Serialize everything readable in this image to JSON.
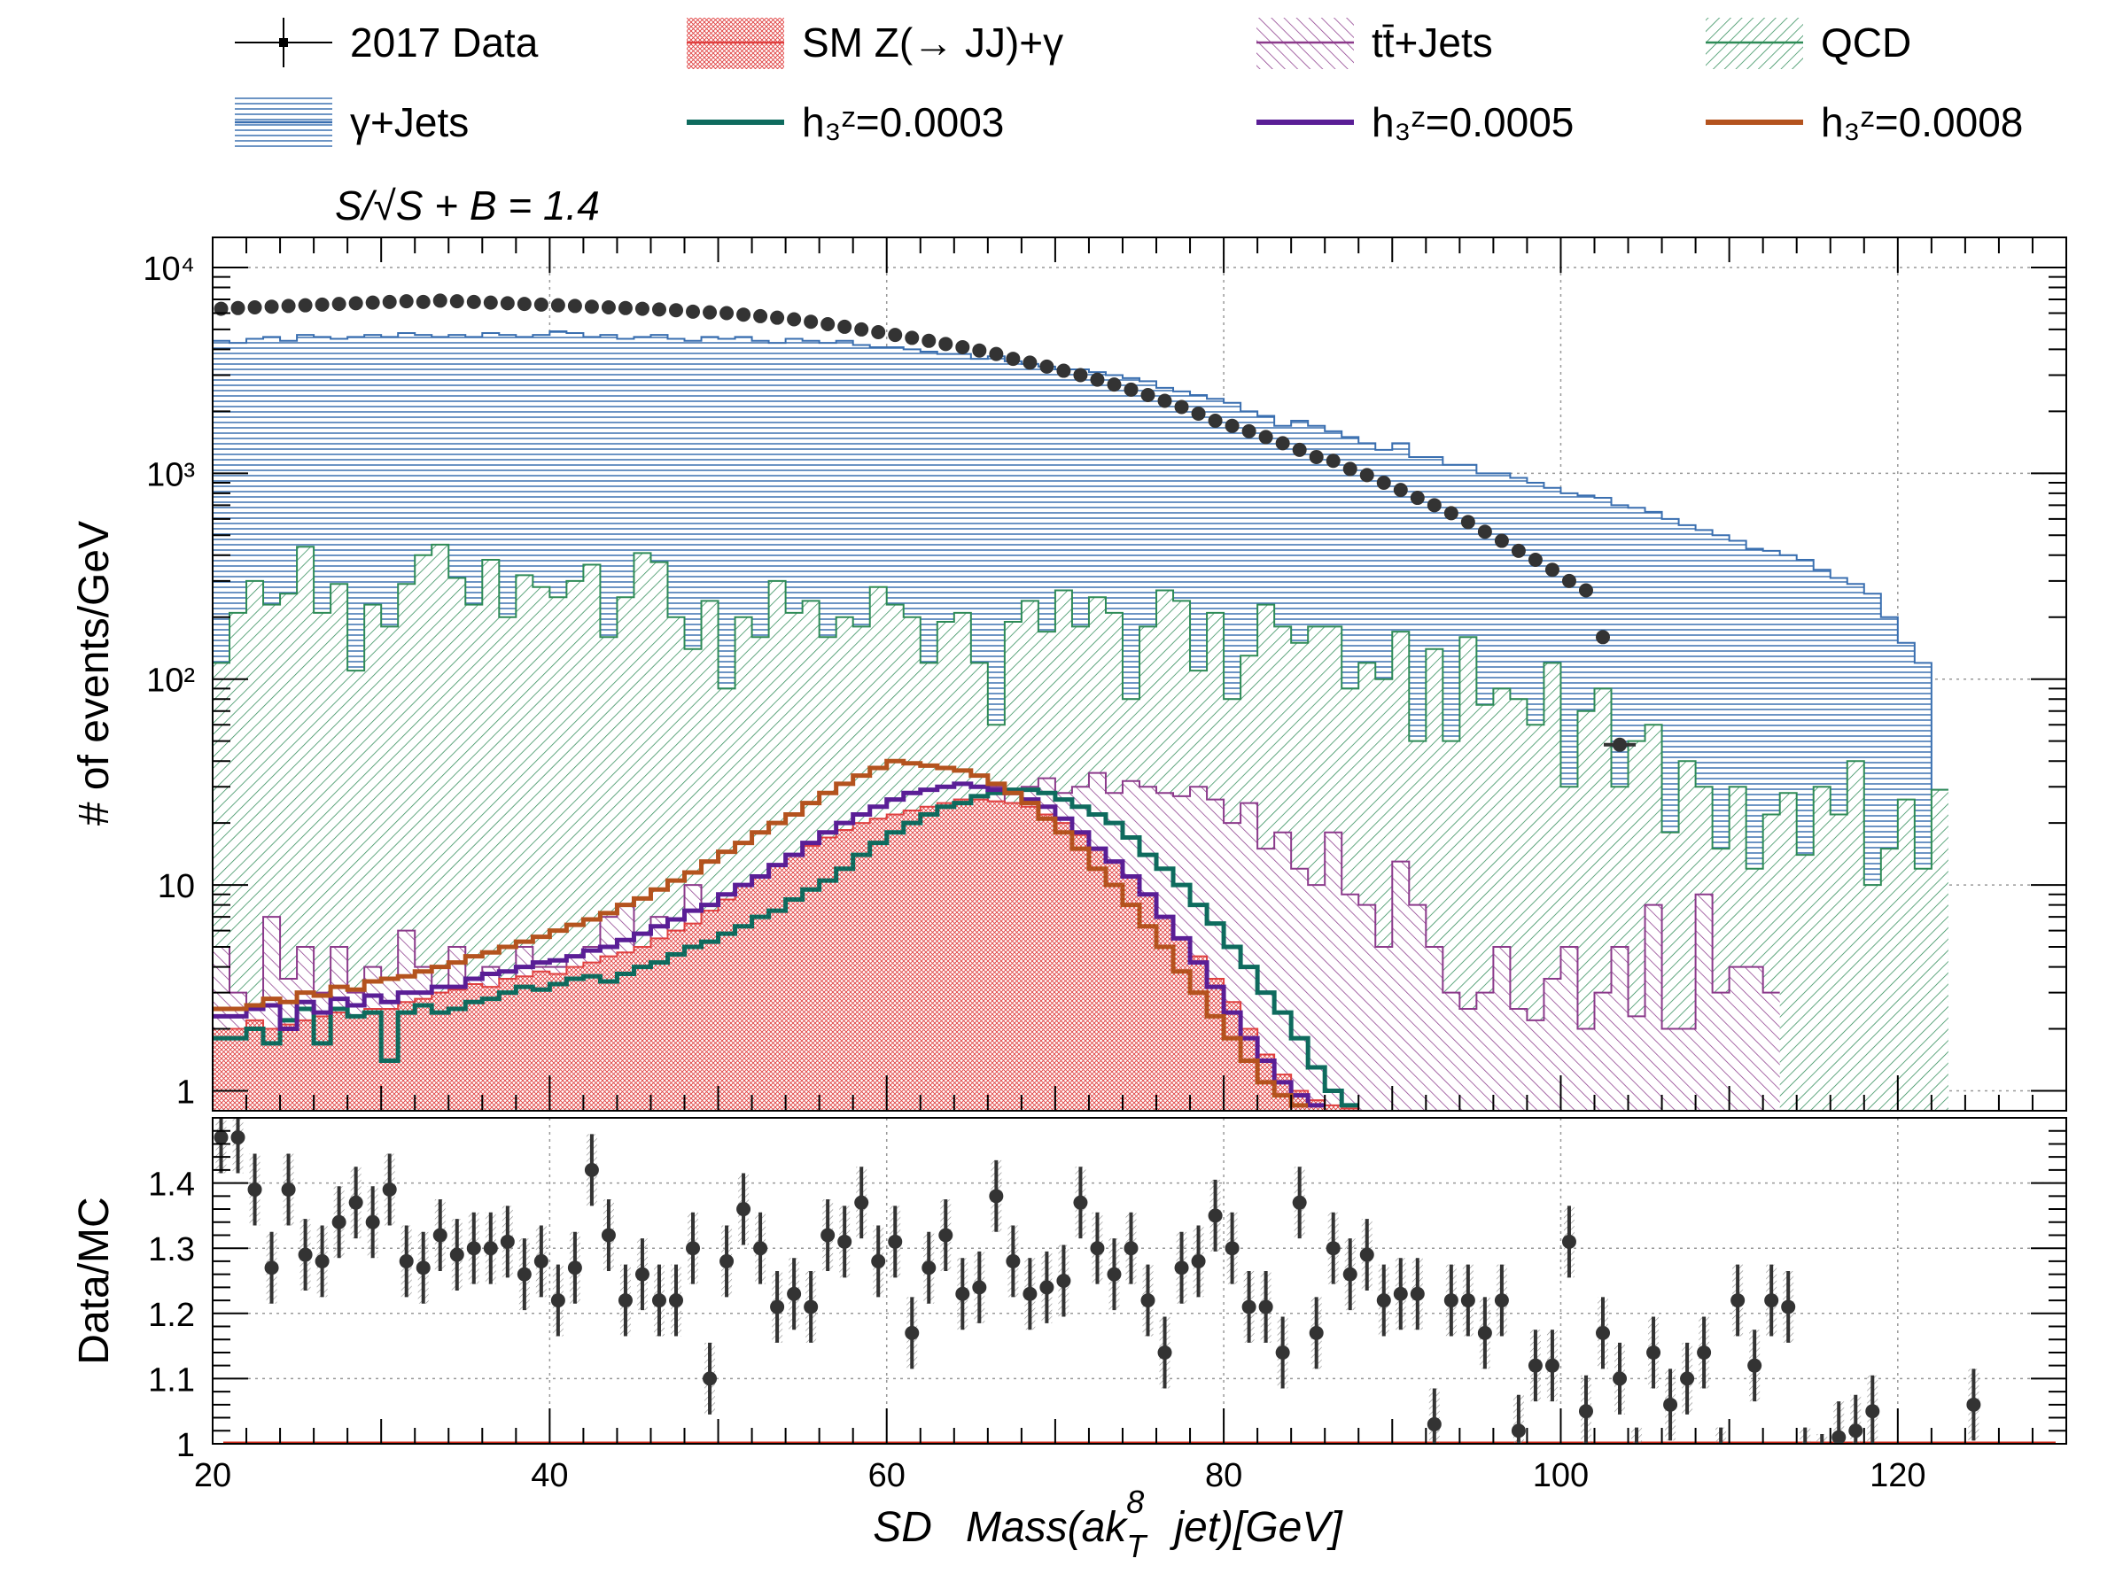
{
  "chart_data": [
    {
      "type": "histogram",
      "panel": "main",
      "ylabel": "# of events/GeV",
      "yscale": "log",
      "ylim": [
        0.8,
        14000
      ],
      "xlim": [
        20,
        130
      ],
      "grid": true,
      "annotation": "S/√S + B = 1.4",
      "y_tick_labels": [
        "10",
        "10²",
        "10³",
        "10⁴"
      ],
      "y_tick_extra": "1",
      "legend": [
        {
          "label": "2017 Data",
          "style": "marker",
          "color": "#333333"
        },
        {
          "label": "SM Z(→ JJ)+γ",
          "style": "hatch",
          "color": "#e04040"
        },
        {
          "label": "tt̄+Jets",
          "style": "hatch",
          "color": "#8b3a8b"
        },
        {
          "label": "QCD",
          "style": "hatch",
          "color": "#2e8b57"
        },
        {
          "label": "γ+Jets",
          "style": "hatch",
          "color": "#3a6fb0"
        },
        {
          "label": "h₃ᶻ=0.0003",
          "style": "line",
          "color": "#0e6b5e"
        },
        {
          "label": "h₃ᶻ=0.0005",
          "style": "line",
          "color": "#5a1e96"
        },
        {
          "label": "h₃ᶻ=0.0008",
          "style": "line",
          "color": "#b4531e"
        }
      ],
      "x_bin_edges_start": 20,
      "bin_width": 1,
      "series": [
        {
          "name": "γ+Jets",
          "kind": "stack-total",
          "color": "#3a6fb0",
          "values": [
            4400,
            4300,
            4500,
            4600,
            4400,
            4700,
            4600,
            4500,
            4600,
            4700,
            4600,
            4800,
            4700,
            4600,
            4700,
            4600,
            4800,
            4700,
            4600,
            4700,
            4900,
            4800,
            4600,
            4700,
            4500,
            4600,
            4700,
            4500,
            4400,
            4600,
            4500,
            4600,
            4400,
            4300,
            4500,
            4400,
            4300,
            4400,
            4200,
            4100,
            4100,
            4000,
            3900,
            3800,
            3800,
            3600,
            3700,
            3500,
            3400,
            3300,
            3200,
            3200,
            3100,
            3000,
            2900,
            2800,
            2600,
            2500,
            2400,
            2300,
            2200,
            2000,
            1900,
            1700,
            1800,
            1700,
            1600,
            1500,
            1400,
            1300,
            1400,
            1200,
            1200,
            1100,
            1100,
            1000,
            1000,
            950,
            900,
            850,
            800,
            780,
            760,
            700,
            680,
            650,
            600,
            560,
            530,
            500,
            470,
            430,
            420,
            400,
            380,
            340,
            310,
            290,
            260,
            200,
            150,
            120,
            29
          ]
        },
        {
          "name": "QCD",
          "kind": "stack",
          "color": "#2e8b57",
          "values": [
            120,
            210,
            300,
            230,
            260,
            440,
            210,
            290,
            110,
            230,
            180,
            290,
            400,
            450,
            310,
            230,
            380,
            200,
            320,
            280,
            250,
            300,
            360,
            160,
            250,
            410,
            370,
            200,
            140,
            240,
            90,
            200,
            160,
            300,
            210,
            240,
            160,
            200,
            180,
            280,
            230,
            200,
            120,
            190,
            210,
            120,
            60,
            190,
            240,
            170,
            270,
            180,
            250,
            210,
            80,
            180,
            270,
            240,
            110,
            210,
            80,
            130,
            230,
            180,
            150,
            180,
            180,
            90,
            120,
            100,
            170,
            50,
            140,
            50,
            160,
            75,
            90,
            80,
            60,
            120,
            30,
            70,
            90,
            30,
            50,
            60,
            18,
            40,
            30,
            15,
            30,
            12,
            22,
            28,
            14,
            30,
            22,
            40,
            10,
            15,
            26,
            12,
            29
          ]
        },
        {
          "name": "tt̄+Jets",
          "kind": "stack",
          "color": "#8b3a8b",
          "values": [
            5,
            3,
            2.5,
            7,
            3.5,
            5,
            3,
            5,
            3,
            4,
            3.5,
            6,
            4,
            3,
            5,
            3.5,
            4,
            3.5,
            5,
            4,
            4,
            4.5,
            5,
            7,
            8,
            5,
            7,
            6,
            10,
            5,
            4,
            6,
            9,
            5,
            7,
            12,
            7,
            7,
            14,
            12,
            16,
            12,
            15,
            20,
            26,
            17,
            30,
            25,
            30,
            33,
            28,
            30,
            35,
            28,
            32,
            30,
            28,
            27,
            30,
            26,
            20,
            25,
            15,
            18,
            12,
            10,
            18,
            9,
            8,
            5,
            13,
            8,
            5,
            3,
            2.5,
            3,
            5,
            2.5,
            2.2,
            3.5,
            5,
            2,
            3,
            5,
            2.3,
            8,
            2,
            2,
            9,
            3,
            4,
            4,
            3
          ]
        },
        {
          "name": "SM Z(→ JJ)+γ",
          "kind": "stack",
          "color": "#e04040",
          "values": [
            2,
            2,
            2.2,
            2,
            2.1,
            2.2,
            2.3,
            2.4,
            2.3,
            2.5,
            2.5,
            2.7,
            2.8,
            3,
            3.1,
            3.3,
            3.2,
            3.5,
            3.6,
            3.8,
            3.7,
            4,
            4.2,
            4.5,
            4.7,
            5,
            5.5,
            6,
            6.5,
            7.5,
            8.5,
            10,
            11,
            12.5,
            14,
            15.5,
            17,
            18.5,
            20,
            21,
            22,
            23,
            24,
            25,
            26,
            26,
            25.5,
            25,
            24,
            22,
            20,
            17.5,
            15,
            13,
            11,
            9,
            7,
            5.5,
            4.5,
            3.5,
            2.7,
            2,
            1.5,
            1.2,
            1,
            0.9,
            0.85,
            0.82
          ]
        },
        {
          "name": "h₃ᶻ=0.0003",
          "kind": "line",
          "color": "#0e6b5e",
          "values": [
            1.8,
            1.8,
            2,
            1.7,
            2.2,
            2.5,
            1.7,
            2.5,
            2.3,
            2.4,
            1.4,
            2.4,
            2.6,
            2.4,
            2.5,
            2.7,
            2.8,
            3,
            3.2,
            3.1,
            3.3,
            3.5,
            3.6,
            3.4,
            3.7,
            4,
            4.2,
            4.6,
            5,
            5.3,
            5.8,
            6.3,
            7,
            7.5,
            8.5,
            9.5,
            10.5,
            12,
            14,
            16,
            18,
            20,
            22,
            24,
            25,
            27,
            28,
            29,
            29,
            28,
            26,
            24,
            22,
            20,
            17,
            14,
            12,
            10,
            8,
            6.5,
            5,
            4,
            3,
            2.4,
            1.8,
            1.3,
            1,
            0.85
          ]
        },
        {
          "name": "h₃ᶻ=0.0005",
          "kind": "line",
          "color": "#5a1e96",
          "values": [
            2.3,
            2.3,
            2.5,
            2.6,
            2,
            2.7,
            2.4,
            2.8,
            2.6,
            2.9,
            2.7,
            3,
            3,
            3.2,
            3.2,
            3.5,
            3.7,
            3.8,
            4,
            4.2,
            4.3,
            4.5,
            4.8,
            5,
            5.4,
            5.8,
            6.3,
            6.8,
            7.5,
            8,
            9,
            10,
            11,
            12.5,
            14,
            16,
            18,
            20,
            22,
            24,
            26,
            28,
            29,
            30,
            31,
            30,
            29,
            28,
            26,
            24,
            21,
            18,
            15,
            13,
            11,
            9,
            7,
            5.5,
            4.2,
            3.2,
            2.4,
            1.8,
            1.4,
            1.1,
            0.95,
            0.85
          ]
        },
        {
          "name": "h₃ᶻ=0.0008",
          "kind": "line",
          "color": "#b4531e",
          "values": [
            2.5,
            2.5,
            2.6,
            2.8,
            2.7,
            3,
            2.9,
            3.2,
            3.1,
            3.4,
            3.5,
            3.6,
            3.8,
            4,
            4.2,
            4.5,
            4.7,
            5,
            5.3,
            5.6,
            6,
            6.4,
            6.8,
            7.3,
            8,
            8.6,
            9.5,
            10.5,
            11.5,
            13,
            14.5,
            16,
            18,
            20,
            22,
            25,
            28,
            31,
            34,
            37,
            40,
            39,
            38,
            37,
            36,
            34,
            31,
            28,
            25,
            21,
            18,
            15,
            12,
            10,
            8,
            6.3,
            5,
            3.8,
            3,
            2.3,
            1.8,
            1.4,
            1.1,
            0.95,
            0.85
          ]
        },
        {
          "name": "2017 Data",
          "kind": "points",
          "color": "#333333",
          "values": [
            6300,
            6350,
            6400,
            6450,
            6500,
            6550,
            6600,
            6650,
            6700,
            6750,
            6800,
            6850,
            6800,
            6900,
            6850,
            6800,
            6750,
            6700,
            6650,
            6600,
            6550,
            6500,
            6450,
            6400,
            6350,
            6300,
            6250,
            6200,
            6100,
            6050,
            6000,
            5900,
            5800,
            5700,
            5600,
            5450,
            5300,
            5150,
            5000,
            4850,
            4700,
            4550,
            4400,
            4250,
            4100,
            3950,
            3800,
            3600,
            3450,
            3300,
            3150,
            3000,
            2850,
            2700,
            2550,
            2400,
            2250,
            2100,
            1950,
            1800,
            1700,
            1600,
            1500,
            1400,
            1300,
            1200,
            1150,
            1050,
            980,
            900,
            830,
            760,
            700,
            640,
            580,
            520,
            470,
            420,
            380,
            340,
            300,
            270,
            160,
            48
          ]
        }
      ]
    },
    {
      "type": "scatter",
      "panel": "ratio",
      "ylabel": "Data/MC",
      "xlabel": "SD   Mass(ak^8_T   jet)[GeV]",
      "xlim": [
        20,
        130
      ],
      "ylim": [
        1.0,
        1.5
      ],
      "grid": true,
      "y_ticks": [
        1,
        1.1,
        1.2,
        1.3,
        1.4
      ],
      "x_ticks": [
        20,
        40,
        60,
        80,
        100,
        120
      ],
      "reference_line": {
        "y": 1,
        "color": "#cc2a1a"
      },
      "points": [
        [
          20.5,
          1.47
        ],
        [
          21.5,
          1.47
        ],
        [
          22.5,
          1.39
        ],
        [
          23.5,
          1.27
        ],
        [
          24.5,
          1.39
        ],
        [
          25.5,
          1.29
        ],
        [
          26.5,
          1.28
        ],
        [
          27.5,
          1.34
        ],
        [
          28.5,
          1.37
        ],
        [
          29.5,
          1.34
        ],
        [
          30.5,
          1.39
        ],
        [
          31.5,
          1.28
        ],
        [
          32.5,
          1.27
        ],
        [
          33.5,
          1.32
        ],
        [
          34.5,
          1.29
        ],
        [
          35.5,
          1.3
        ],
        [
          36.5,
          1.3
        ],
        [
          37.5,
          1.31
        ],
        [
          38.5,
          1.26
        ],
        [
          39.5,
          1.28
        ],
        [
          40.5,
          1.22
        ],
        [
          41.5,
          1.27
        ],
        [
          42.5,
          1.42
        ],
        [
          43.5,
          1.32
        ],
        [
          44.5,
          1.22
        ],
        [
          45.5,
          1.26
        ],
        [
          46.5,
          1.22
        ],
        [
          47.5,
          1.22
        ],
        [
          48.5,
          1.3
        ],
        [
          49.5,
          1.1
        ],
        [
          50.5,
          1.28
        ],
        [
          51.5,
          1.36
        ],
        [
          52.5,
          1.3
        ],
        [
          53.5,
          1.21
        ],
        [
          54.5,
          1.23
        ],
        [
          55.5,
          1.21
        ],
        [
          56.5,
          1.32
        ],
        [
          57.5,
          1.31
        ],
        [
          58.5,
          1.37
        ],
        [
          59.5,
          1.28
        ],
        [
          60.5,
          1.31
        ],
        [
          61.5,
          1.17
        ],
        [
          62.5,
          1.27
        ],
        [
          63.5,
          1.32
        ],
        [
          64.5,
          1.23
        ],
        [
          65.5,
          1.24
        ],
        [
          66.5,
          1.38
        ],
        [
          67.5,
          1.28
        ],
        [
          68.5,
          1.23
        ],
        [
          69.5,
          1.24
        ],
        [
          70.5,
          1.25
        ],
        [
          71.5,
          1.37
        ],
        [
          72.5,
          1.3
        ],
        [
          73.5,
          1.26
        ],
        [
          74.5,
          1.3
        ],
        [
          75.5,
          1.22
        ],
        [
          76.5,
          1.14
        ],
        [
          77.5,
          1.27
        ],
        [
          78.5,
          1.28
        ],
        [
          79.5,
          1.35
        ],
        [
          80.5,
          1.3
        ],
        [
          81.5,
          1.21
        ],
        [
          82.5,
          1.21
        ],
        [
          83.5,
          1.14
        ],
        [
          84.5,
          1.37
        ],
        [
          85.5,
          1.17
        ],
        [
          86.5,
          1.3
        ],
        [
          87.5,
          1.26
        ],
        [
          88.5,
          1.29
        ],
        [
          89.5,
          1.22
        ],
        [
          90.5,
          1.23
        ],
        [
          91.5,
          1.23
        ],
        [
          92.5,
          1.03
        ],
        [
          93.5,
          1.22
        ],
        [
          94.5,
          1.22
        ],
        [
          95.5,
          1.17
        ],
        [
          96.5,
          1.22
        ],
        [
          97.5,
          1.02
        ],
        [
          98.5,
          1.12
        ],
        [
          99.5,
          1.12
        ],
        [
          100.5,
          1.31
        ],
        [
          101.5,
          1.05
        ],
        [
          102.5,
          1.17
        ],
        [
          103.5,
          1.1
        ],
        [
          104.5,
          0.97
        ],
        [
          105.5,
          1.14
        ],
        [
          106.5,
          1.06
        ],
        [
          107.5,
          1.1
        ],
        [
          108.5,
          1.14
        ],
        [
          109.5,
          0.97
        ],
        [
          110.5,
          1.22
        ],
        [
          111.5,
          1.12
        ],
        [
          112.5,
          1.22
        ],
        [
          113.5,
          1.21
        ],
        [
          114.5,
          0.97
        ],
        [
          115.5,
          0.96
        ],
        [
          116.5,
          1.01
        ],
        [
          117.5,
          1.02
        ],
        [
          118.5,
          1.05
        ],
        [
          124.5,
          1.06
        ]
      ]
    }
  ]
}
